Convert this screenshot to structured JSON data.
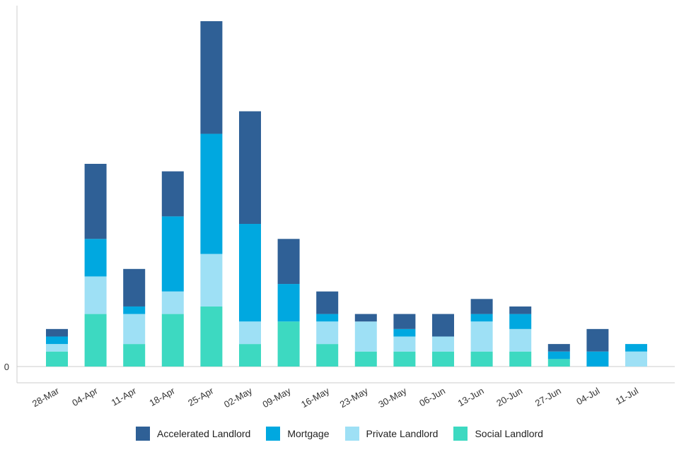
{
  "chart_data": {
    "type": "bar",
    "stacked": true,
    "title": "",
    "xlabel": "",
    "ylabel": "",
    "y_tick_labels": [
      "0"
    ],
    "ylim": [
      0,
      92
    ],
    "grid": false,
    "legend_position": "bottom",
    "categories": [
      "28-Mar",
      "04-Apr",
      "11-Apr",
      "18-Apr",
      "25-Apr",
      "02-May",
      "09-May",
      "16-May",
      "23-May",
      "30-May",
      "06-Jun",
      "13-Jun",
      "20-Jun",
      "27-Jun",
      "04-Jul",
      "11-Jul"
    ],
    "series": [
      {
        "name": "Social Landlord",
        "color": "#3dd9c1",
        "values": [
          4,
          14,
          6,
          14,
          16,
          6,
          12,
          6,
          4,
          4,
          4,
          4,
          4,
          2,
          0,
          0
        ]
      },
      {
        "name": "Private Landlord",
        "color": "#9ee0f5",
        "values": [
          2,
          10,
          8,
          6,
          14,
          6,
          0,
          6,
          8,
          4,
          4,
          8,
          6,
          0,
          0,
          4
        ]
      },
      {
        "name": "Mortgage",
        "color": "#00a8e0",
        "values": [
          2,
          10,
          2,
          20,
          32,
          26,
          10,
          2,
          0,
          2,
          0,
          2,
          4,
          2,
          4,
          2
        ]
      },
      {
        "name": "Accelerated Landlord",
        "color": "#2f6096",
        "values": [
          2,
          20,
          10,
          12,
          30,
          30,
          12,
          6,
          2,
          4,
          6,
          4,
          2,
          2,
          6,
          0
        ]
      }
    ],
    "legend_order": [
      "Accelerated Landlord",
      "Mortgage",
      "Private Landlord",
      "Social Landlord"
    ]
  }
}
